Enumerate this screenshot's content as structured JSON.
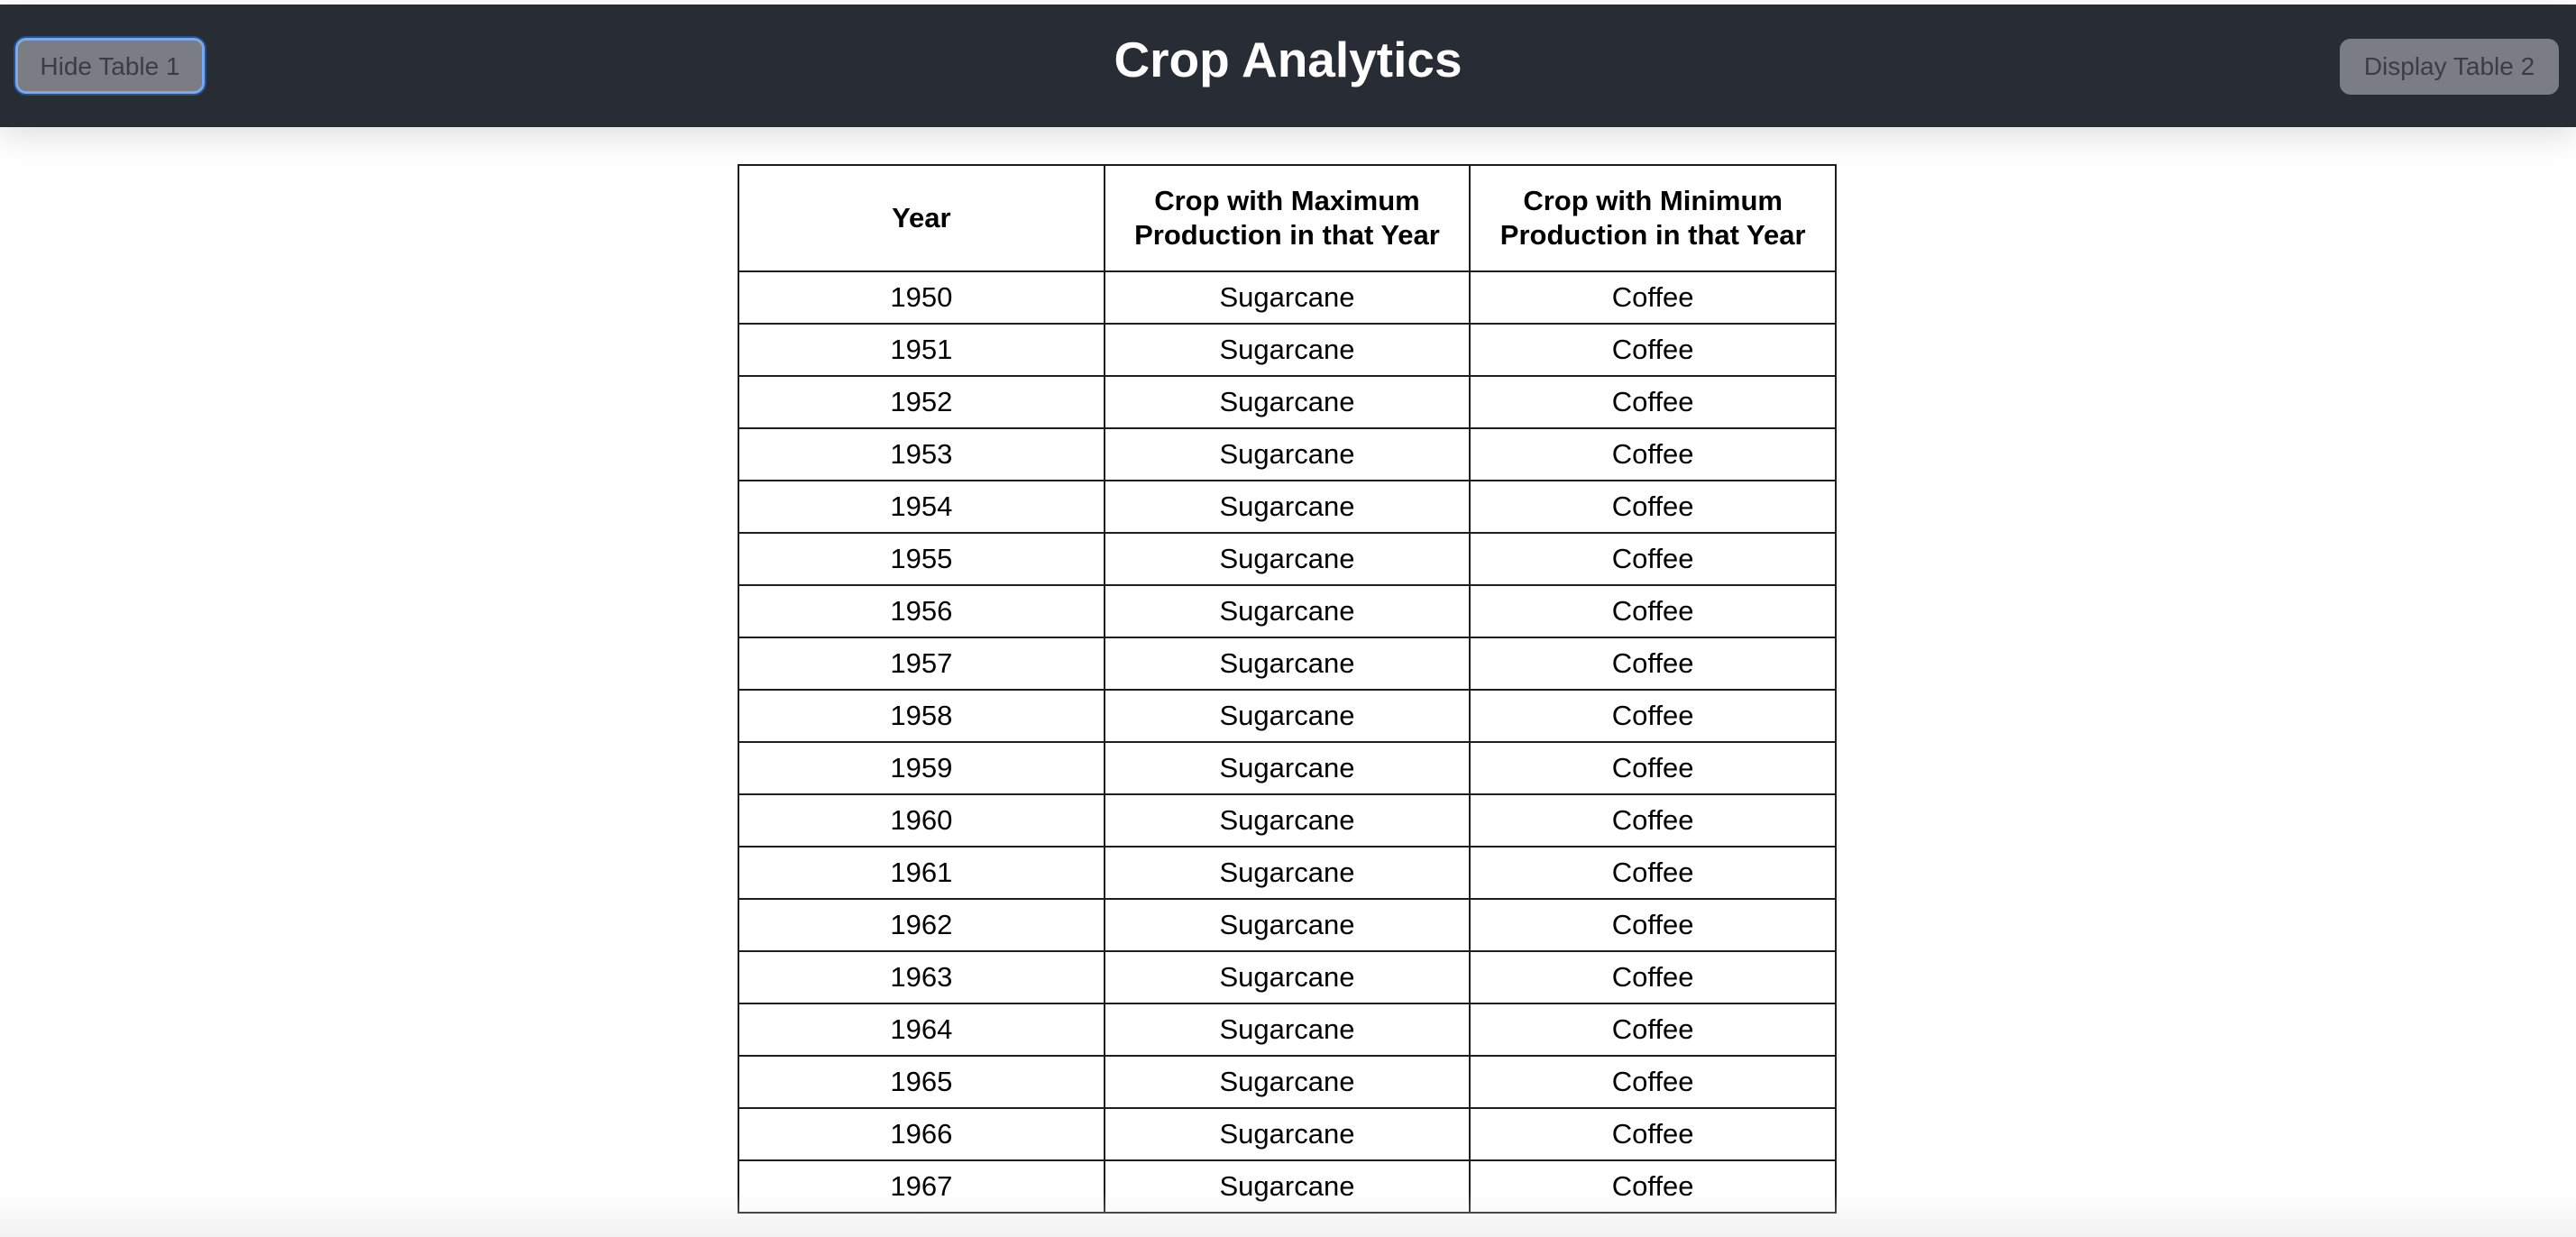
{
  "header": {
    "title": "Crop Analytics",
    "left_button_label": "Hide Table 1",
    "right_button_label": "Display Table 2"
  },
  "table": {
    "columns": [
      "Year",
      "Crop with Maximum Production in that Year",
      "Crop with Minimum Production in that Year"
    ],
    "rows": [
      [
        "1950",
        "Sugarcane",
        "Coffee"
      ],
      [
        "1951",
        "Sugarcane",
        "Coffee"
      ],
      [
        "1952",
        "Sugarcane",
        "Coffee"
      ],
      [
        "1953",
        "Sugarcane",
        "Coffee"
      ],
      [
        "1954",
        "Sugarcane",
        "Coffee"
      ],
      [
        "1955",
        "Sugarcane",
        "Coffee"
      ],
      [
        "1956",
        "Sugarcane",
        "Coffee"
      ],
      [
        "1957",
        "Sugarcane",
        "Coffee"
      ],
      [
        "1958",
        "Sugarcane",
        "Coffee"
      ],
      [
        "1959",
        "Sugarcane",
        "Coffee"
      ],
      [
        "1960",
        "Sugarcane",
        "Coffee"
      ],
      [
        "1961",
        "Sugarcane",
        "Coffee"
      ],
      [
        "1962",
        "Sugarcane",
        "Coffee"
      ],
      [
        "1963",
        "Sugarcane",
        "Coffee"
      ],
      [
        "1964",
        "Sugarcane",
        "Coffee"
      ],
      [
        "1965",
        "Sugarcane",
        "Coffee"
      ],
      [
        "1966",
        "Sugarcane",
        "Coffee"
      ],
      [
        "1967",
        "Sugarcane",
        "Coffee"
      ]
    ]
  },
  "colors": {
    "header_bg": "#282c34",
    "header_text": "#ffffff",
    "button_bg": "#7a7d84",
    "focus_ring": "#7ea8e8"
  }
}
